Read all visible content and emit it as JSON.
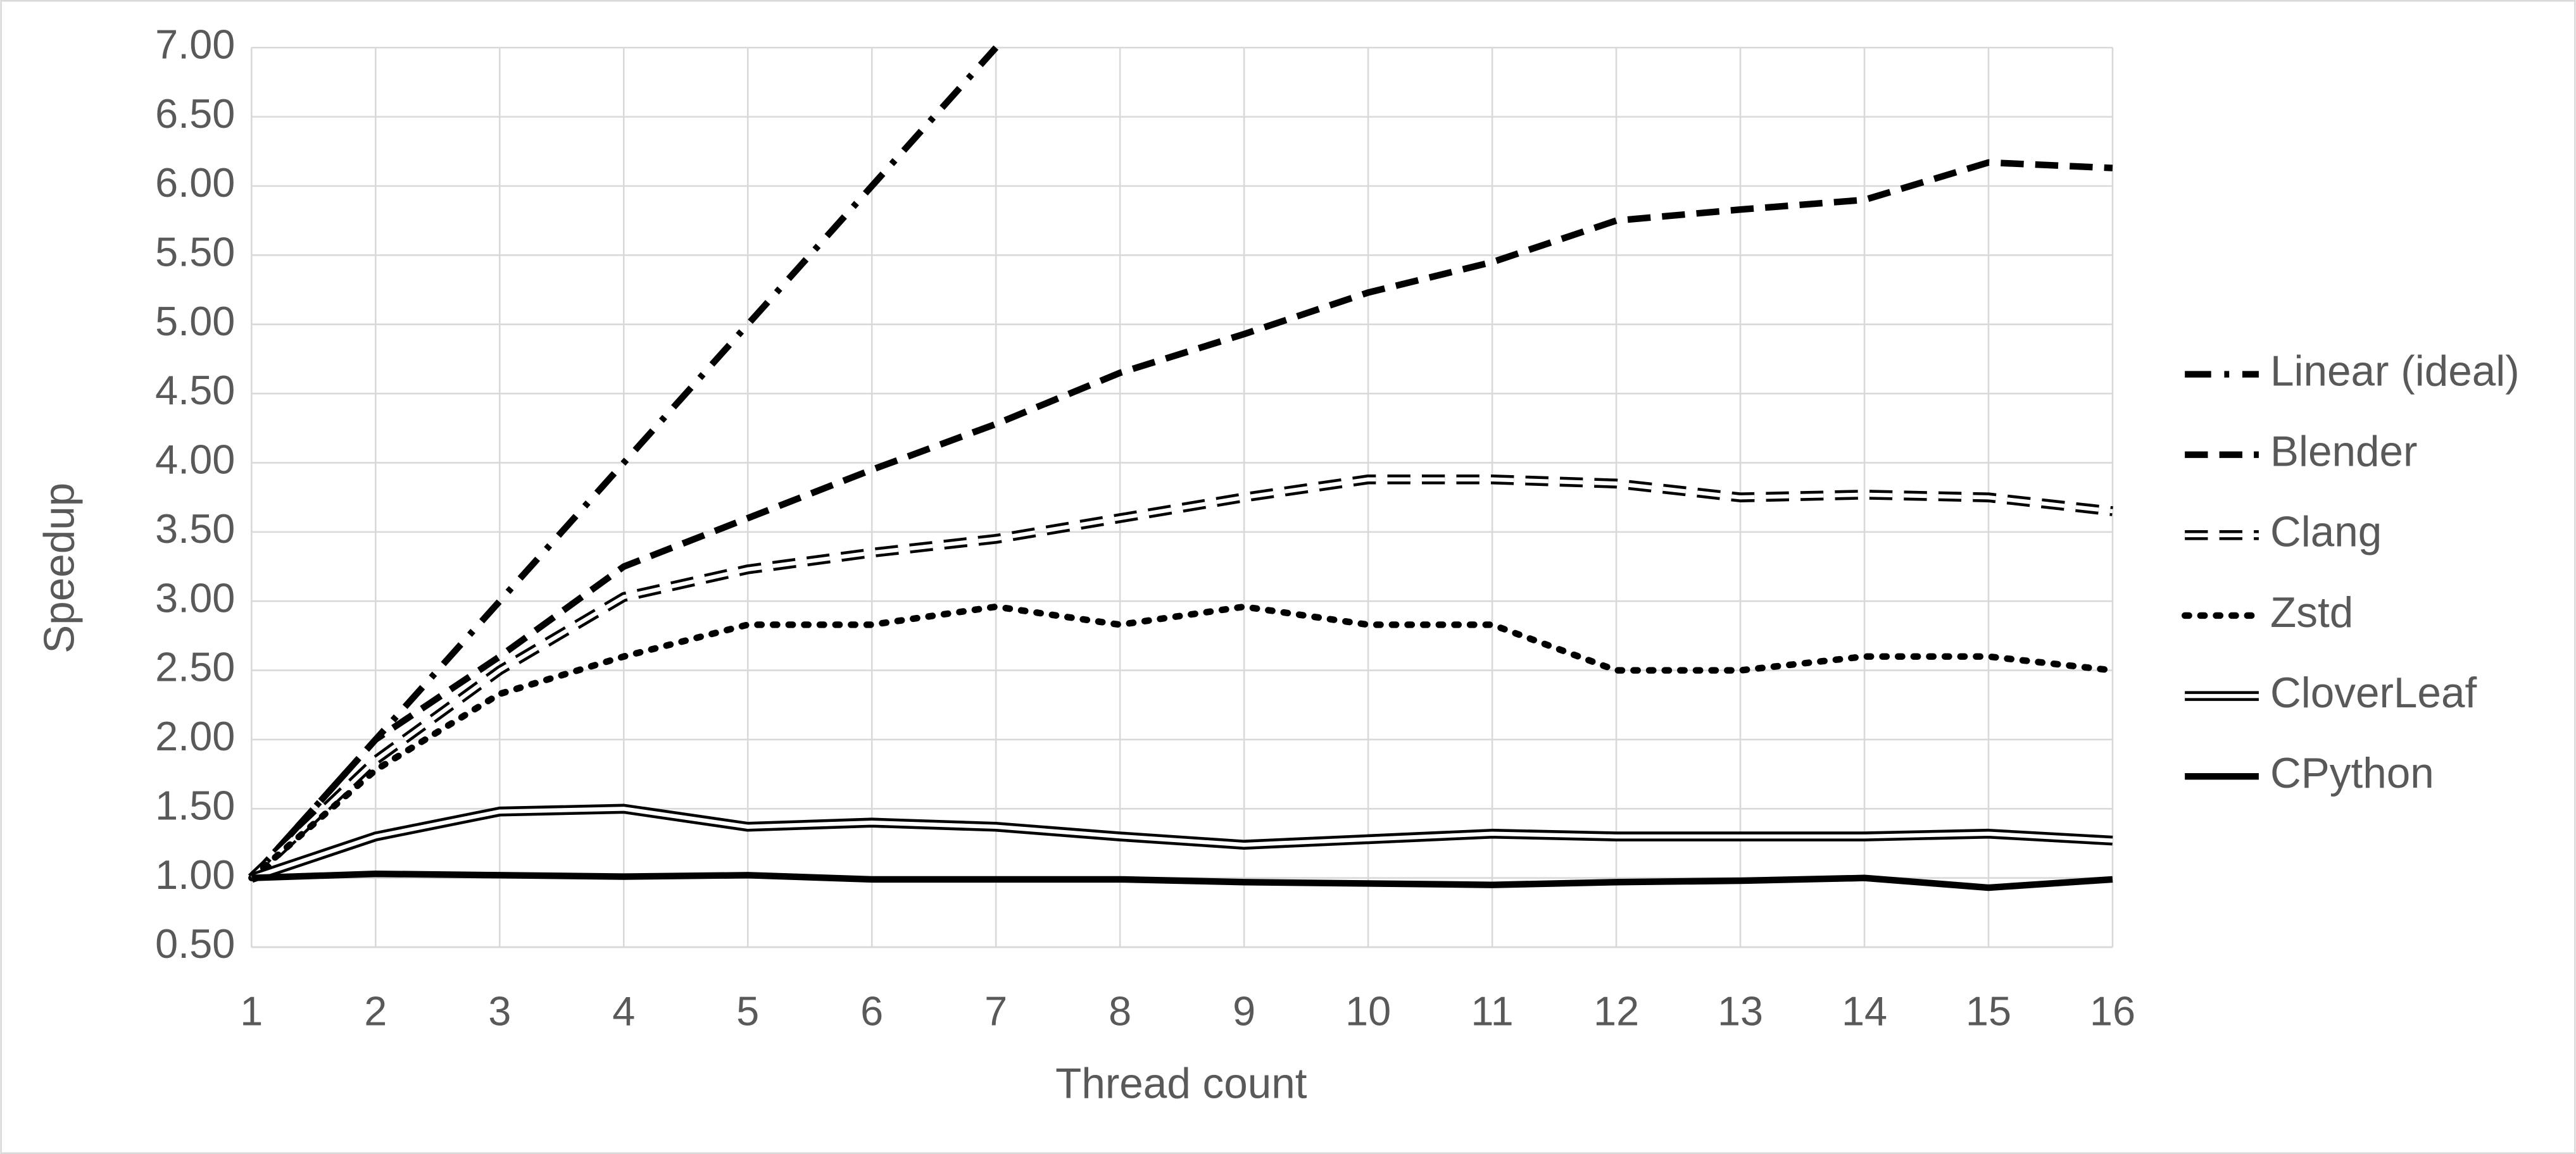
{
  "chart_data": {
    "type": "line",
    "x_label": "Thread count",
    "y_label": "Speedup",
    "x": [
      1,
      2,
      3,
      4,
      5,
      6,
      7,
      8,
      9,
      10,
      11,
      12,
      13,
      14,
      15,
      16
    ],
    "xlim": [
      1,
      16
    ],
    "xticks": [
      1,
      2,
      3,
      4,
      5,
      6,
      7,
      8,
      9,
      10,
      11,
      12,
      13,
      14,
      15,
      16
    ],
    "ylim": [
      0.5,
      7
    ],
    "yticks": [
      {
        "value": 0.5,
        "label": "0.50"
      },
      {
        "value": 1,
        "label": "1.00"
      },
      {
        "value": 1.5,
        "label": "1.50"
      },
      {
        "value": 2,
        "label": "2.00"
      },
      {
        "value": 2.5,
        "label": "2.50"
      },
      {
        "value": 3,
        "label": "3.00"
      },
      {
        "value": 3.5,
        "label": "3.50"
      },
      {
        "value": 4,
        "label": "4.00"
      },
      {
        "value": 4.5,
        "label": "4.50"
      },
      {
        "value": 5,
        "label": "5.00"
      },
      {
        "value": 5.5,
        "label": "5.50"
      },
      {
        "value": 6,
        "label": "6.00"
      },
      {
        "value": 6.5,
        "label": "6.50"
      },
      {
        "value": 7,
        "label": "7.00"
      }
    ],
    "grid": true,
    "legend": "right",
    "series": [
      {
        "name": "Linear (ideal)",
        "color": "#000000",
        "dash": "dashdot",
        "outline": false,
        "values": [
          1,
          2,
          3,
          4,
          5,
          6,
          7,
          null,
          null,
          null,
          null,
          null,
          null,
          null,
          null,
          null
        ]
      },
      {
        "name": "Blender",
        "color": "#000000",
        "dash": "dashed",
        "outline": false,
        "values": [
          1,
          2.0,
          2.6,
          3.25,
          3.6,
          3.95,
          4.28,
          4.65,
          4.93,
          5.23,
          5.45,
          5.75,
          5.83,
          5.9,
          6.17,
          6.13
        ]
      },
      {
        "name": "Clang",
        "color": "#000000",
        "dash": "dashed",
        "outline": true,
        "values": [
          1,
          1.85,
          2.5,
          3.03,
          3.23,
          3.35,
          3.45,
          3.6,
          3.75,
          3.88,
          3.88,
          3.85,
          3.75,
          3.77,
          3.75,
          3.65
        ]
      },
      {
        "name": "Zstd",
        "color": "#000000",
        "dash": "dotted",
        "outline": false,
        "values": [
          1,
          1.78,
          2.33,
          2.6,
          2.83,
          2.83,
          2.96,
          2.83,
          2.96,
          2.83,
          2.83,
          2.5,
          2.5,
          2.6,
          2.6,
          2.5
        ]
      },
      {
        "name": "CloverLeaf",
        "color": "#000000",
        "dash": "solid",
        "outline": true,
        "values": [
          1,
          1.3,
          1.48,
          1.5,
          1.37,
          1.4,
          1.37,
          1.3,
          1.24,
          1.28,
          1.32,
          1.3,
          1.3,
          1.3,
          1.32,
          1.27
        ]
      },
      {
        "name": "CPython",
        "color": "#000000",
        "dash": "solid",
        "outline": false,
        "values": [
          1,
          1.03,
          1.02,
          1.01,
          1.02,
          0.99,
          0.99,
          0.99,
          0.97,
          0.96,
          0.95,
          0.97,
          0.98,
          1.0,
          0.93,
          0.99
        ]
      }
    ]
  }
}
